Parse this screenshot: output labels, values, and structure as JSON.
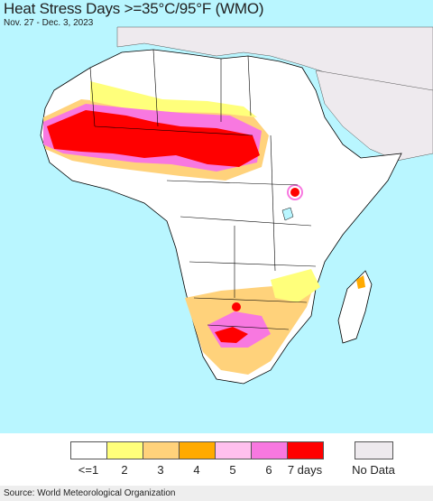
{
  "header": {
    "title": "Heat Stress Days >=35°C/95°F (WMO)",
    "date_range": "Nov. 27 - Dec. 3, 2023"
  },
  "map": {
    "ocean_color": "#ffffff",
    "land_color": "#ffffff",
    "nodata_color": "#eeeaee",
    "background_region_color": "#b9f6ff",
    "border_color": "#000000"
  },
  "legend": {
    "items": [
      {
        "label": "<=1",
        "color": "#ffffff"
      },
      {
        "label": "2",
        "color": "#ffff7b"
      },
      {
        "label": "3",
        "color": "#ffd27b"
      },
      {
        "label": "4",
        "color": "#ffaa00"
      },
      {
        "label": "5",
        "color": "#ffc0ee"
      },
      {
        "label": "6",
        "color": "#f878e0"
      },
      {
        "label": "7 days",
        "color": "#ff0000"
      }
    ],
    "nodata": {
      "label": "No Data",
      "color": "#eeeaee"
    }
  },
  "footer": {
    "source": "Source: World Meteorological Organization"
  }
}
